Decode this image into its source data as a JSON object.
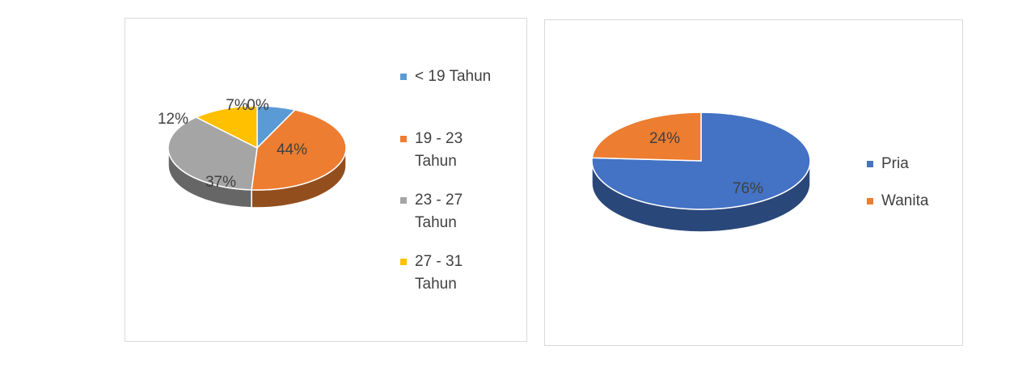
{
  "chart_data": [
    {
      "type": "pie",
      "style": "3d",
      "title": "",
      "categories": [
        "< 19 Tahun",
        "19 - 23 Tahun",
        "23 - 27 Tahun",
        "27 - 31 Tahun"
      ],
      "values": [
        7,
        44,
        37,
        12
      ],
      "data_labels": [
        "7%",
        "44%",
        "37%",
        "12%"
      ],
      "extra_label": "0%",
      "colors": [
        "#5b9bd5",
        "#ed7d31",
        "#a5a5a5",
        "#ffc000"
      ],
      "legend": {
        "position": "right",
        "lines": [
          [
            "< 19 Tahun"
          ],
          [
            "19 - 23",
            "Tahun"
          ],
          [
            "23 - 27",
            "Tahun"
          ],
          [
            "27 - 31",
            "Tahun"
          ]
        ]
      }
    },
    {
      "type": "pie",
      "style": "3d",
      "title": "",
      "categories": [
        "Pria",
        "Wanita"
      ],
      "values": [
        76,
        24
      ],
      "data_labels": [
        "76%",
        "24%"
      ],
      "colors": [
        "#4472c4",
        "#ed7d31"
      ],
      "legend": {
        "position": "right",
        "lines": [
          [
            "Pria"
          ],
          [
            "Wanita"
          ]
        ]
      }
    }
  ]
}
